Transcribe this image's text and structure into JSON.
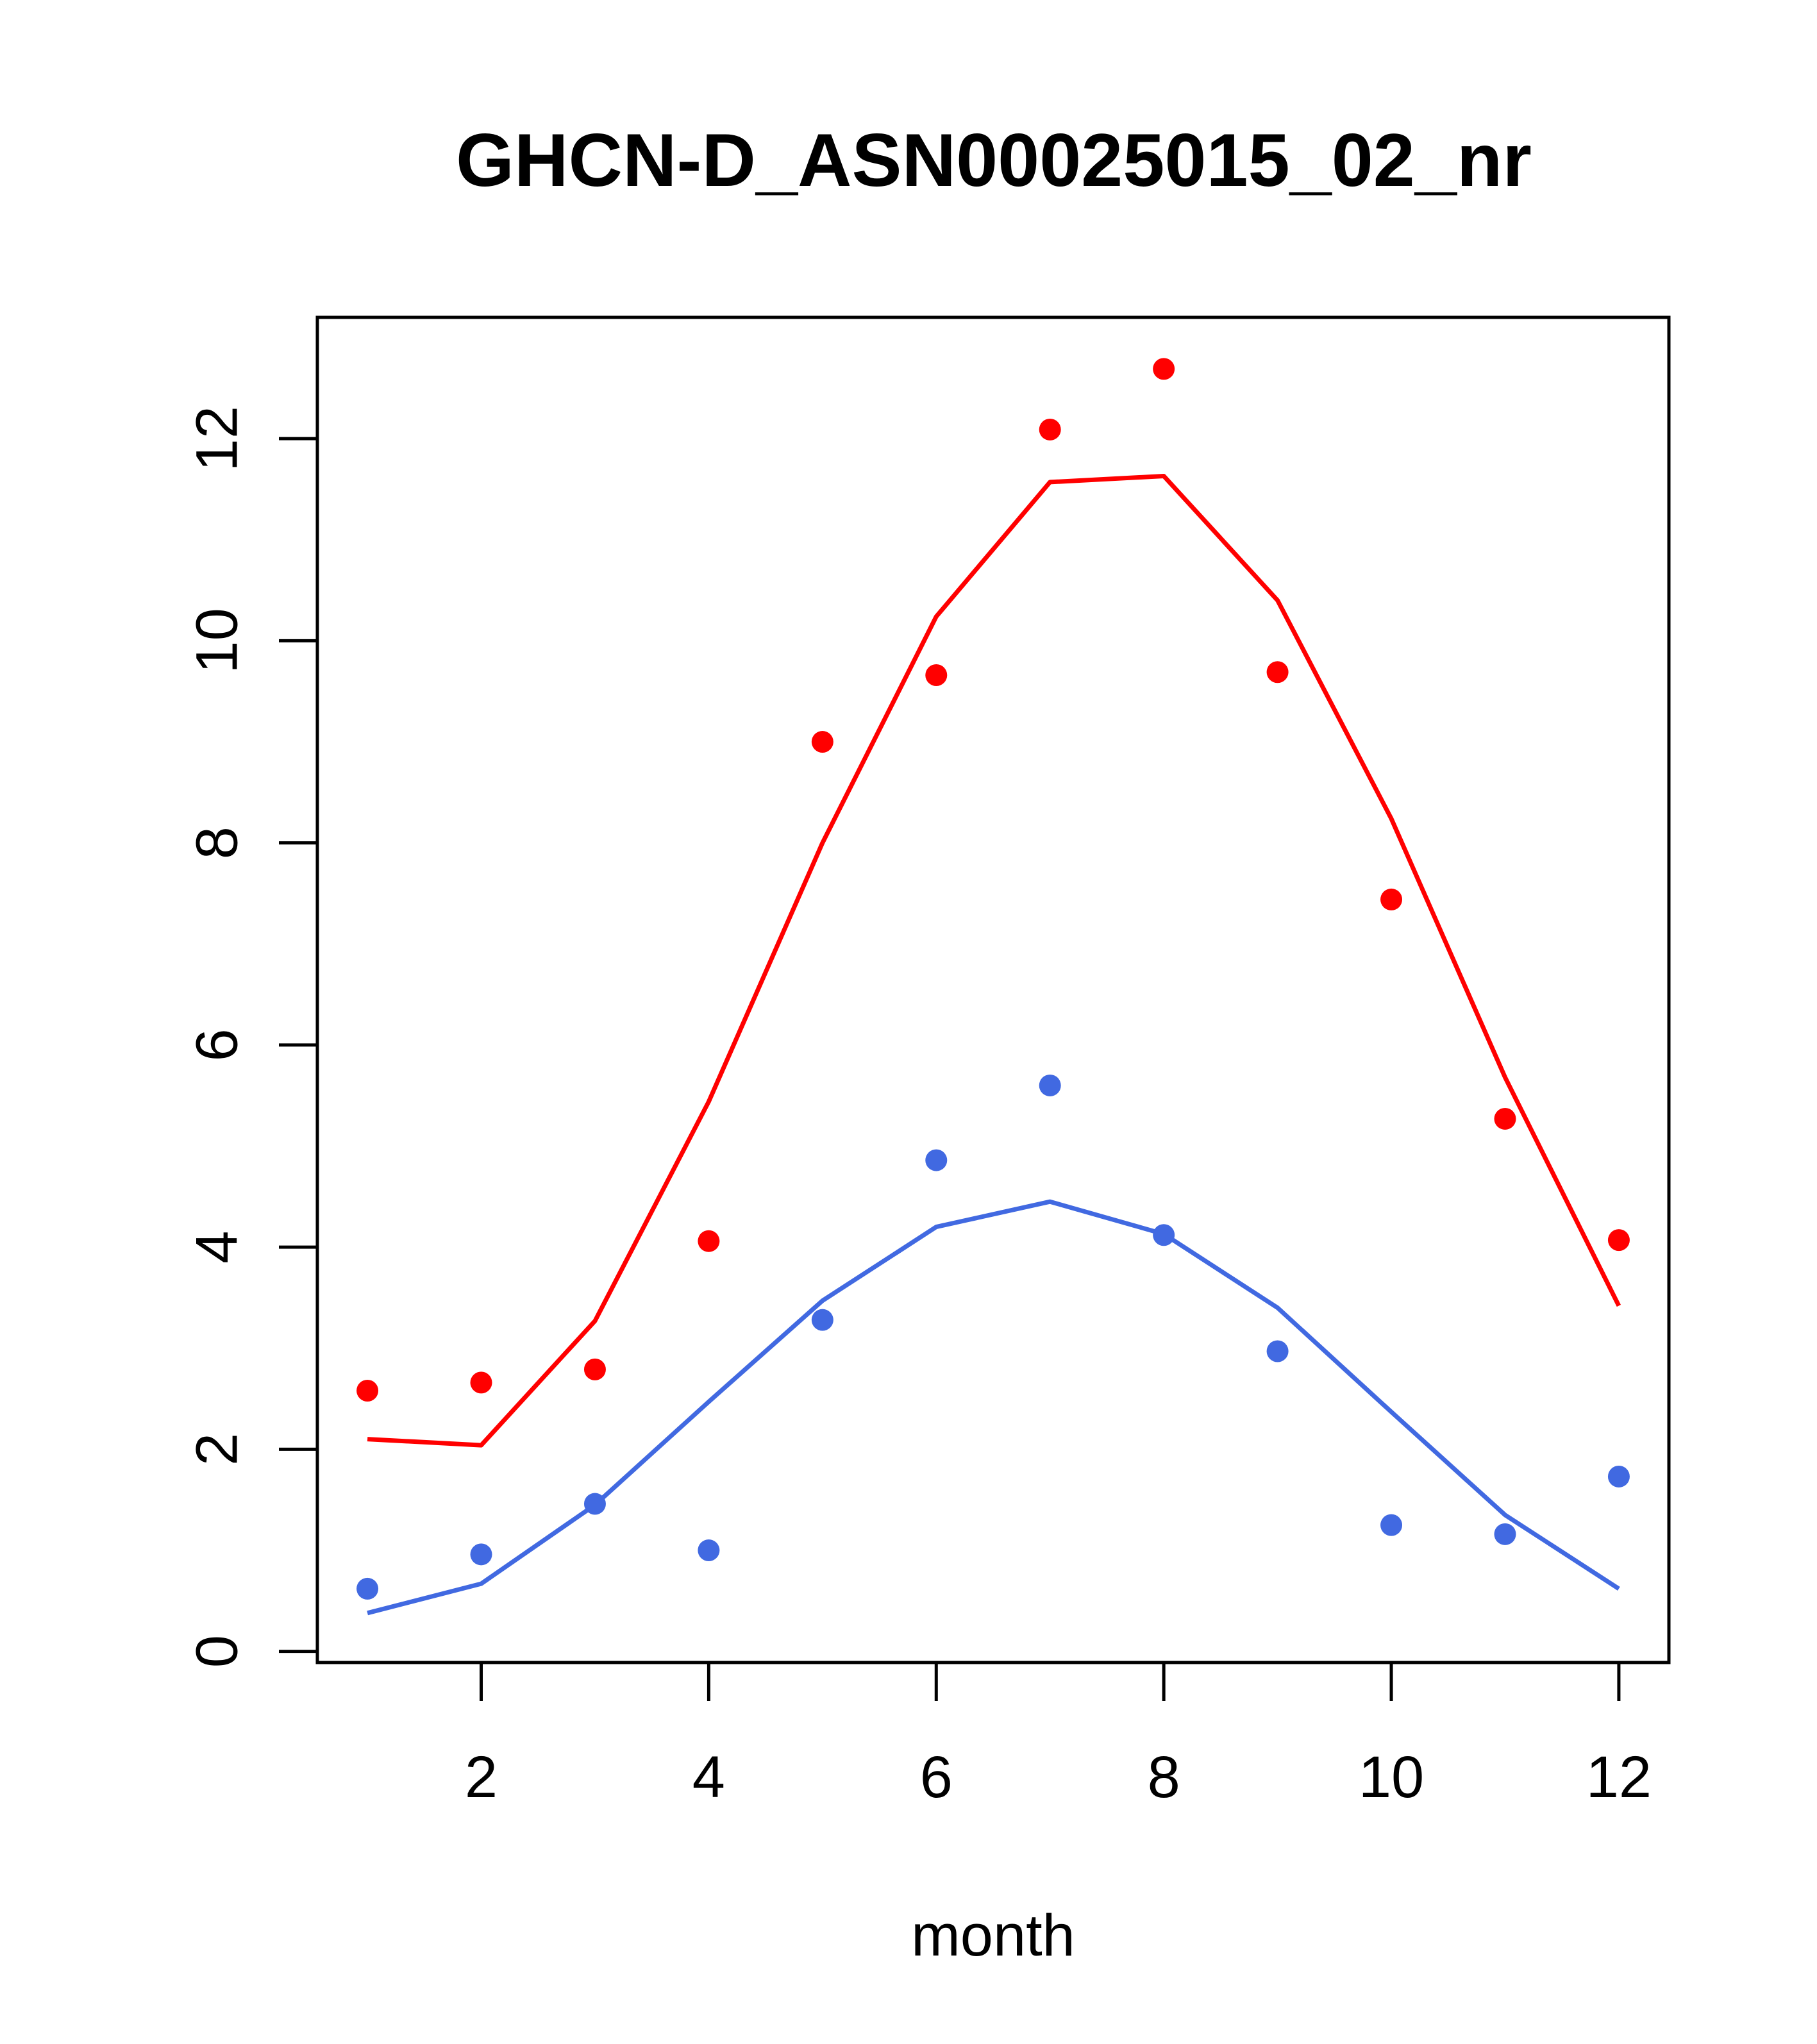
{
  "chart_data": {
    "type": "scatter",
    "title": "GHCN-D_ASN00025015_02_nr",
    "xlabel": "month",
    "ylabel": "",
    "xlim": [
      0.56,
      12.44
    ],
    "ylim": [
      -0.11,
      13.2
    ],
    "x_ticks": [
      2,
      4,
      6,
      8,
      10,
      12
    ],
    "y_ticks": [
      0,
      2,
      4,
      6,
      8,
      10,
      12
    ],
    "x": [
      1,
      2,
      3,
      4,
      5,
      6,
      7,
      8,
      9,
      10,
      11,
      12
    ],
    "grid": false,
    "series": [
      {
        "color": "#ff0000",
        "points": [
          2.58,
          2.66,
          2.79,
          4.06,
          9.0,
          9.66,
          12.09,
          12.69,
          9.69,
          7.44,
          5.27,
          4.07
        ],
        "line": [
          2.1,
          2.04,
          3.27,
          5.44,
          8.0,
          10.24,
          11.57,
          11.63,
          10.4,
          8.24,
          5.68,
          3.42
        ]
      },
      {
        "color": "#4169e1",
        "points": [
          0.62,
          0.96,
          1.46,
          1.0,
          3.28,
          4.86,
          5.6,
          4.12,
          2.97,
          1.25,
          1.16,
          1.73
        ],
        "line": [
          0.38,
          0.67,
          1.45,
          2.47,
          3.47,
          4.2,
          4.45,
          4.13,
          3.4,
          2.37,
          1.35,
          0.62
        ]
      }
    ]
  }
}
